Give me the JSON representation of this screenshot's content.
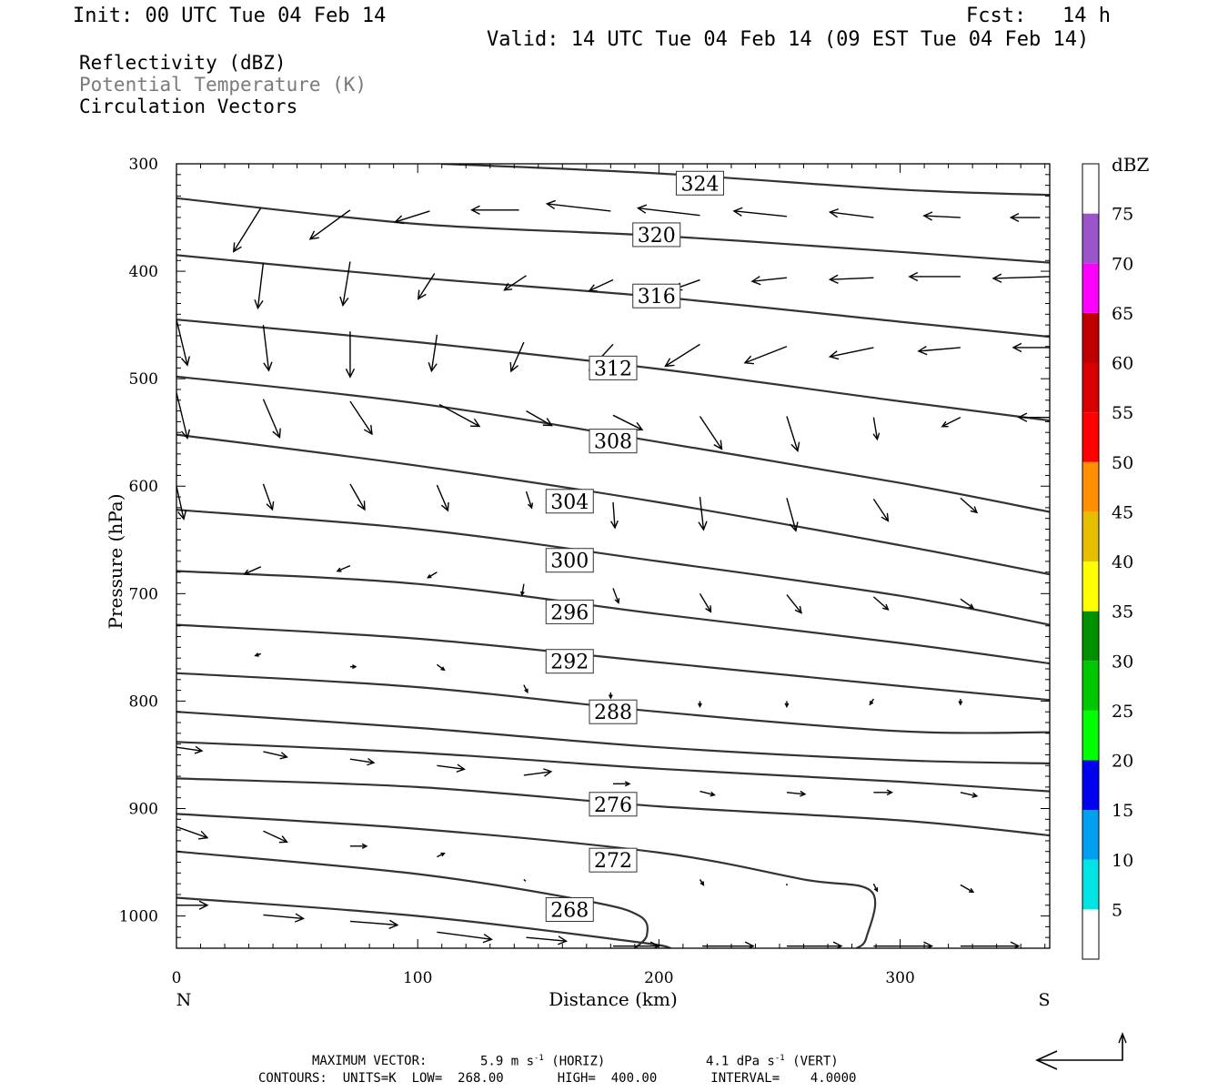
{
  "header": {
    "init": "Init: 00 UTC Tue 04 Feb 14",
    "fcst_label": "Fcst:",
    "fcst_value": "14 h",
    "valid": "Valid: 14 UTC Tue 04 Feb 14 (09 EST Tue 04 Feb 14)"
  },
  "legend": {
    "reflectivity": "Reflectivity (dBZ)",
    "theta": "Potential Temperature (K)",
    "vectors": "Circulation Vectors"
  },
  "footer": {
    "max_vector_label": "MAXIMUM VECTOR:",
    "horiz_value": "5.9 m s",
    "horiz_sup": "-1",
    "horiz_tag": "(HORIZ)",
    "vert_value": "4.1 dPa s",
    "vert_sup": "-1",
    "vert_tag": "(VERT)",
    "contours_line": "CONTOURS:  UNITS=K  LOW=  268.00       HIGH=  400.00       INTERVAL=    4.0000"
  },
  "colors": {
    "contour": "#333333",
    "frame": "#000000",
    "label_gray": "#7a7a7a"
  },
  "chart_data": {
    "type": "cross-section",
    "xlabel": "Distance (km)",
    "ylabel": "Pressure (hPa)",
    "xlim": [
      0,
      362
    ],
    "ylim": [
      300,
      1030
    ],
    "x_ticks": [
      0,
      100,
      200,
      300
    ],
    "y_ticks": [
      300,
      400,
      500,
      600,
      700,
      800,
      900,
      1000
    ],
    "x_end_labels": {
      "left": "N",
      "right": "S"
    },
    "colorbar": {
      "title": "dBZ",
      "levels": [
        5,
        10,
        15,
        20,
        25,
        30,
        35,
        40,
        45,
        50,
        55,
        60,
        65,
        70,
        75
      ],
      "colors": [
        "#ffffff",
        "#00e4e4",
        "#00a0f0",
        "#0000f0",
        "#00ff00",
        "#00c800",
        "#009000",
        "#ffff00",
        "#e6be00",
        "#ff9000",
        "#ff0000",
        "#d80000",
        "#c00000",
        "#ff00ff",
        "#9955c9",
        "#ffffff"
      ]
    },
    "contour_levels_labeled": [
      {
        "label": "324",
        "x": 217,
        "p": 318
      },
      {
        "label": "320",
        "x": 199,
        "p": 366
      },
      {
        "label": "316",
        "x": 199,
        "p": 423
      },
      {
        "label": "312",
        "x": 181,
        "p": 490
      },
      {
        "label": "308",
        "x": 181,
        "p": 558
      },
      {
        "label": "304",
        "x": 163,
        "p": 614
      },
      {
        "label": "300",
        "x": 163,
        "p": 669
      },
      {
        "label": "296",
        "x": 163,
        "p": 717
      },
      {
        "label": "292",
        "x": 163,
        "p": 763
      },
      {
        "label": "288",
        "x": 181,
        "p": 810
      },
      {
        "label": "276",
        "x": 181,
        "p": 896
      },
      {
        "label": "272",
        "x": 181,
        "p": 948
      },
      {
        "label": "268",
        "x": 163,
        "p": 994
      }
    ],
    "isentropes": [
      [
        [
          110,
          300
        ],
        [
          200,
          309
        ],
        [
          300,
          324
        ],
        [
          362,
          329
        ]
      ],
      [
        [
          0,
          332
        ],
        [
          100,
          356
        ],
        [
          200,
          367
        ],
        [
          300,
          382
        ],
        [
          362,
          392
        ]
      ],
      [
        [
          0,
          385
        ],
        [
          100,
          406
        ],
        [
          200,
          424
        ],
        [
          300,
          447
        ],
        [
          362,
          461
        ]
      ],
      [
        [
          0,
          445
        ],
        [
          100,
          466
        ],
        [
          200,
          491
        ],
        [
          300,
          521
        ],
        [
          362,
          539
        ]
      ],
      [
        [
          0,
          498
        ],
        [
          100,
          523
        ],
        [
          200,
          559
        ],
        [
          300,
          597
        ],
        [
          362,
          624
        ]
      ],
      [
        [
          0,
          552
        ],
        [
          100,
          581
        ],
        [
          200,
          615
        ],
        [
          300,
          655
        ],
        [
          362,
          682
        ]
      ],
      [
        [
          0,
          622
        ],
        [
          100,
          640
        ],
        [
          200,
          670
        ],
        [
          300,
          702
        ],
        [
          362,
          729
        ]
      ],
      [
        [
          0,
          679
        ],
        [
          100,
          691
        ],
        [
          200,
          719
        ],
        [
          300,
          746
        ],
        [
          362,
          765
        ]
      ],
      [
        [
          0,
          729
        ],
        [
          100,
          742
        ],
        [
          200,
          764
        ],
        [
          300,
          786
        ],
        [
          362,
          799
        ]
      ],
      [
        [
          0,
          774
        ],
        [
          100,
          787
        ],
        [
          200,
          810
        ],
        [
          300,
          828
        ],
        [
          362,
          829
        ]
      ],
      [
        [
          0,
          810
        ],
        [
          100,
          825
        ],
        [
          200,
          843
        ],
        [
          300,
          855
        ],
        [
          362,
          858
        ]
      ],
      [
        [
          0,
          838
        ],
        [
          100,
          848
        ],
        [
          200,
          863
        ],
        [
          300,
          875
        ],
        [
          362,
          884
        ]
      ],
      [
        [
          0,
          872
        ],
        [
          100,
          880
        ],
        [
          200,
          898
        ],
        [
          300,
          911
        ],
        [
          362,
          925
        ]
      ],
      [
        [
          0,
          905
        ],
        [
          100,
          919
        ],
        [
          200,
          941
        ],
        [
          260,
          966
        ],
        [
          288,
          977
        ],
        [
          286,
          1020
        ],
        [
          282,
          1030
        ]
      ],
      [
        [
          0,
          940
        ],
        [
          100,
          961
        ],
        [
          170,
          986
        ],
        [
          192,
          1000
        ],
        [
          195,
          1018
        ],
        [
          190,
          1030
        ]
      ],
      [
        [
          0,
          983
        ],
        [
          100,
          1000
        ],
        [
          190,
          1024
        ],
        [
          205,
          1030
        ]
      ]
    ],
    "vectors": [
      [
        35,
        341,
        -15,
        24
      ],
      [
        72,
        343,
        -22,
        16
      ],
      [
        105,
        344,
        -19,
        6
      ],
      [
        142,
        343,
        -26,
        0
      ],
      [
        180,
        344,
        -35,
        -4
      ],
      [
        217,
        348,
        -34,
        -4
      ],
      [
        253,
        349,
        -29,
        -3
      ],
      [
        289,
        350,
        -24,
        -3
      ],
      [
        325,
        350,
        -20,
        -1
      ],
      [
        358,
        350,
        -16,
        0
      ],
      [
        36,
        392,
        -3,
        25
      ],
      [
        72,
        391,
        -4,
        24
      ],
      [
        107,
        402,
        -9,
        14
      ],
      [
        145,
        404,
        -12,
        8
      ],
      [
        181,
        408,
        -13,
        6
      ],
      [
        217,
        408,
        -14,
        5
      ],
      [
        253,
        406,
        -19,
        2
      ],
      [
        289,
        406,
        -24,
        1
      ],
      [
        325,
        405,
        -28,
        0
      ],
      [
        362,
        405,
        -31,
        1
      ],
      [
        0,
        445,
        6,
        25
      ],
      [
        36,
        450,
        3,
        25
      ],
      [
        72,
        456,
        0,
        25
      ],
      [
        108,
        459,
        -3,
        20
      ],
      [
        144,
        466,
        -7,
        16
      ],
      [
        181,
        468,
        -13,
        14
      ],
      [
        217,
        468,
        -19,
        12
      ],
      [
        253,
        470,
        -23,
        9
      ],
      [
        289,
        471,
        -24,
        5
      ],
      [
        325,
        471,
        -23,
        2
      ],
      [
        362,
        471,
        -20,
        0
      ],
      [
        0,
        513,
        6,
        25
      ],
      [
        36,
        519,
        9,
        21
      ],
      [
        72,
        521,
        12,
        18
      ],
      [
        109,
        524,
        22,
        12
      ],
      [
        145,
        530,
        14,
        8
      ],
      [
        181,
        534,
        16,
        8
      ],
      [
        217,
        535,
        12,
        18
      ],
      [
        253,
        535,
        6,
        19
      ],
      [
        289,
        536,
        2,
        12
      ],
      [
        325,
        536,
        -10,
        5
      ],
      [
        362,
        536,
        -17,
        0
      ],
      [
        0,
        600,
        4,
        18
      ],
      [
        36,
        598,
        5,
        14
      ],
      [
        72,
        598,
        8,
        14
      ],
      [
        108,
        599,
        6,
        14
      ],
      [
        145,
        605,
        3,
        9
      ],
      [
        181,
        615,
        1,
        14
      ],
      [
        217,
        610,
        2,
        18
      ],
      [
        253,
        611,
        5,
        18
      ],
      [
        289,
        612,
        8,
        12
      ],
      [
        325,
        611,
        9,
        8
      ],
      [
        35,
        675,
        -9,
        4
      ],
      [
        72,
        674,
        -7,
        3
      ],
      [
        108,
        680,
        -5,
        3
      ],
      [
        144,
        691,
        -1,
        6
      ],
      [
        181,
        695,
        3,
        8
      ],
      [
        217,
        700,
        6,
        10
      ],
      [
        253,
        701,
        8,
        10
      ],
      [
        289,
        703,
        8,
        7
      ],
      [
        325,
        705,
        7,
        5
      ],
      [
        35,
        756,
        -3,
        1
      ],
      [
        72,
        768,
        3,
        0
      ],
      [
        108,
        766,
        4,
        3
      ],
      [
        144,
        785,
        2,
        4
      ],
      [
        180,
        792,
        0,
        3
      ],
      [
        217,
        800,
        0,
        3
      ],
      [
        253,
        800,
        0,
        3
      ],
      [
        289,
        798,
        -2,
        3
      ],
      [
        325,
        798,
        0,
        3
      ],
      [
        0,
        843,
        14,
        2
      ],
      [
        36,
        847,
        13,
        3
      ],
      [
        72,
        854,
        13,
        2
      ],
      [
        108,
        860,
        15,
        2
      ],
      [
        144,
        869,
        15,
        -2
      ],
      [
        181,
        877,
        9,
        0
      ],
      [
        217,
        884,
        8,
        2
      ],
      [
        253,
        885,
        10,
        1
      ],
      [
        289,
        885,
        10,
        0
      ],
      [
        325,
        885,
        9,
        2
      ],
      [
        0,
        917,
        17,
        6
      ],
      [
        36,
        921,
        13,
        6
      ],
      [
        72,
        935,
        9,
        0
      ],
      [
        108,
        945,
        4,
        -2
      ],
      [
        144,
        966,
        1,
        1
      ],
      [
        217,
        966,
        2,
        3
      ],
      [
        253,
        970,
        0,
        1
      ],
      [
        289,
        970,
        2,
        4
      ],
      [
        325,
        971,
        7,
        4
      ],
      [
        0,
        990,
        17,
        0
      ],
      [
        36,
        999,
        22,
        2
      ],
      [
        72,
        1005,
        26,
        2
      ],
      [
        108,
        1015,
        30,
        4
      ],
      [
        145,
        1020,
        22,
        2
      ],
      [
        181,
        1028,
        25,
        0
      ],
      [
        218,
        1028,
        28,
        0
      ],
      [
        253,
        1028,
        30,
        0
      ],
      [
        289,
        1028,
        32,
        0
      ],
      [
        325,
        1028,
        32,
        0
      ]
    ],
    "key_vector": {
      "horiz": "5.9 m s-1",
      "vert": "4.1 dPa s-1"
    }
  }
}
